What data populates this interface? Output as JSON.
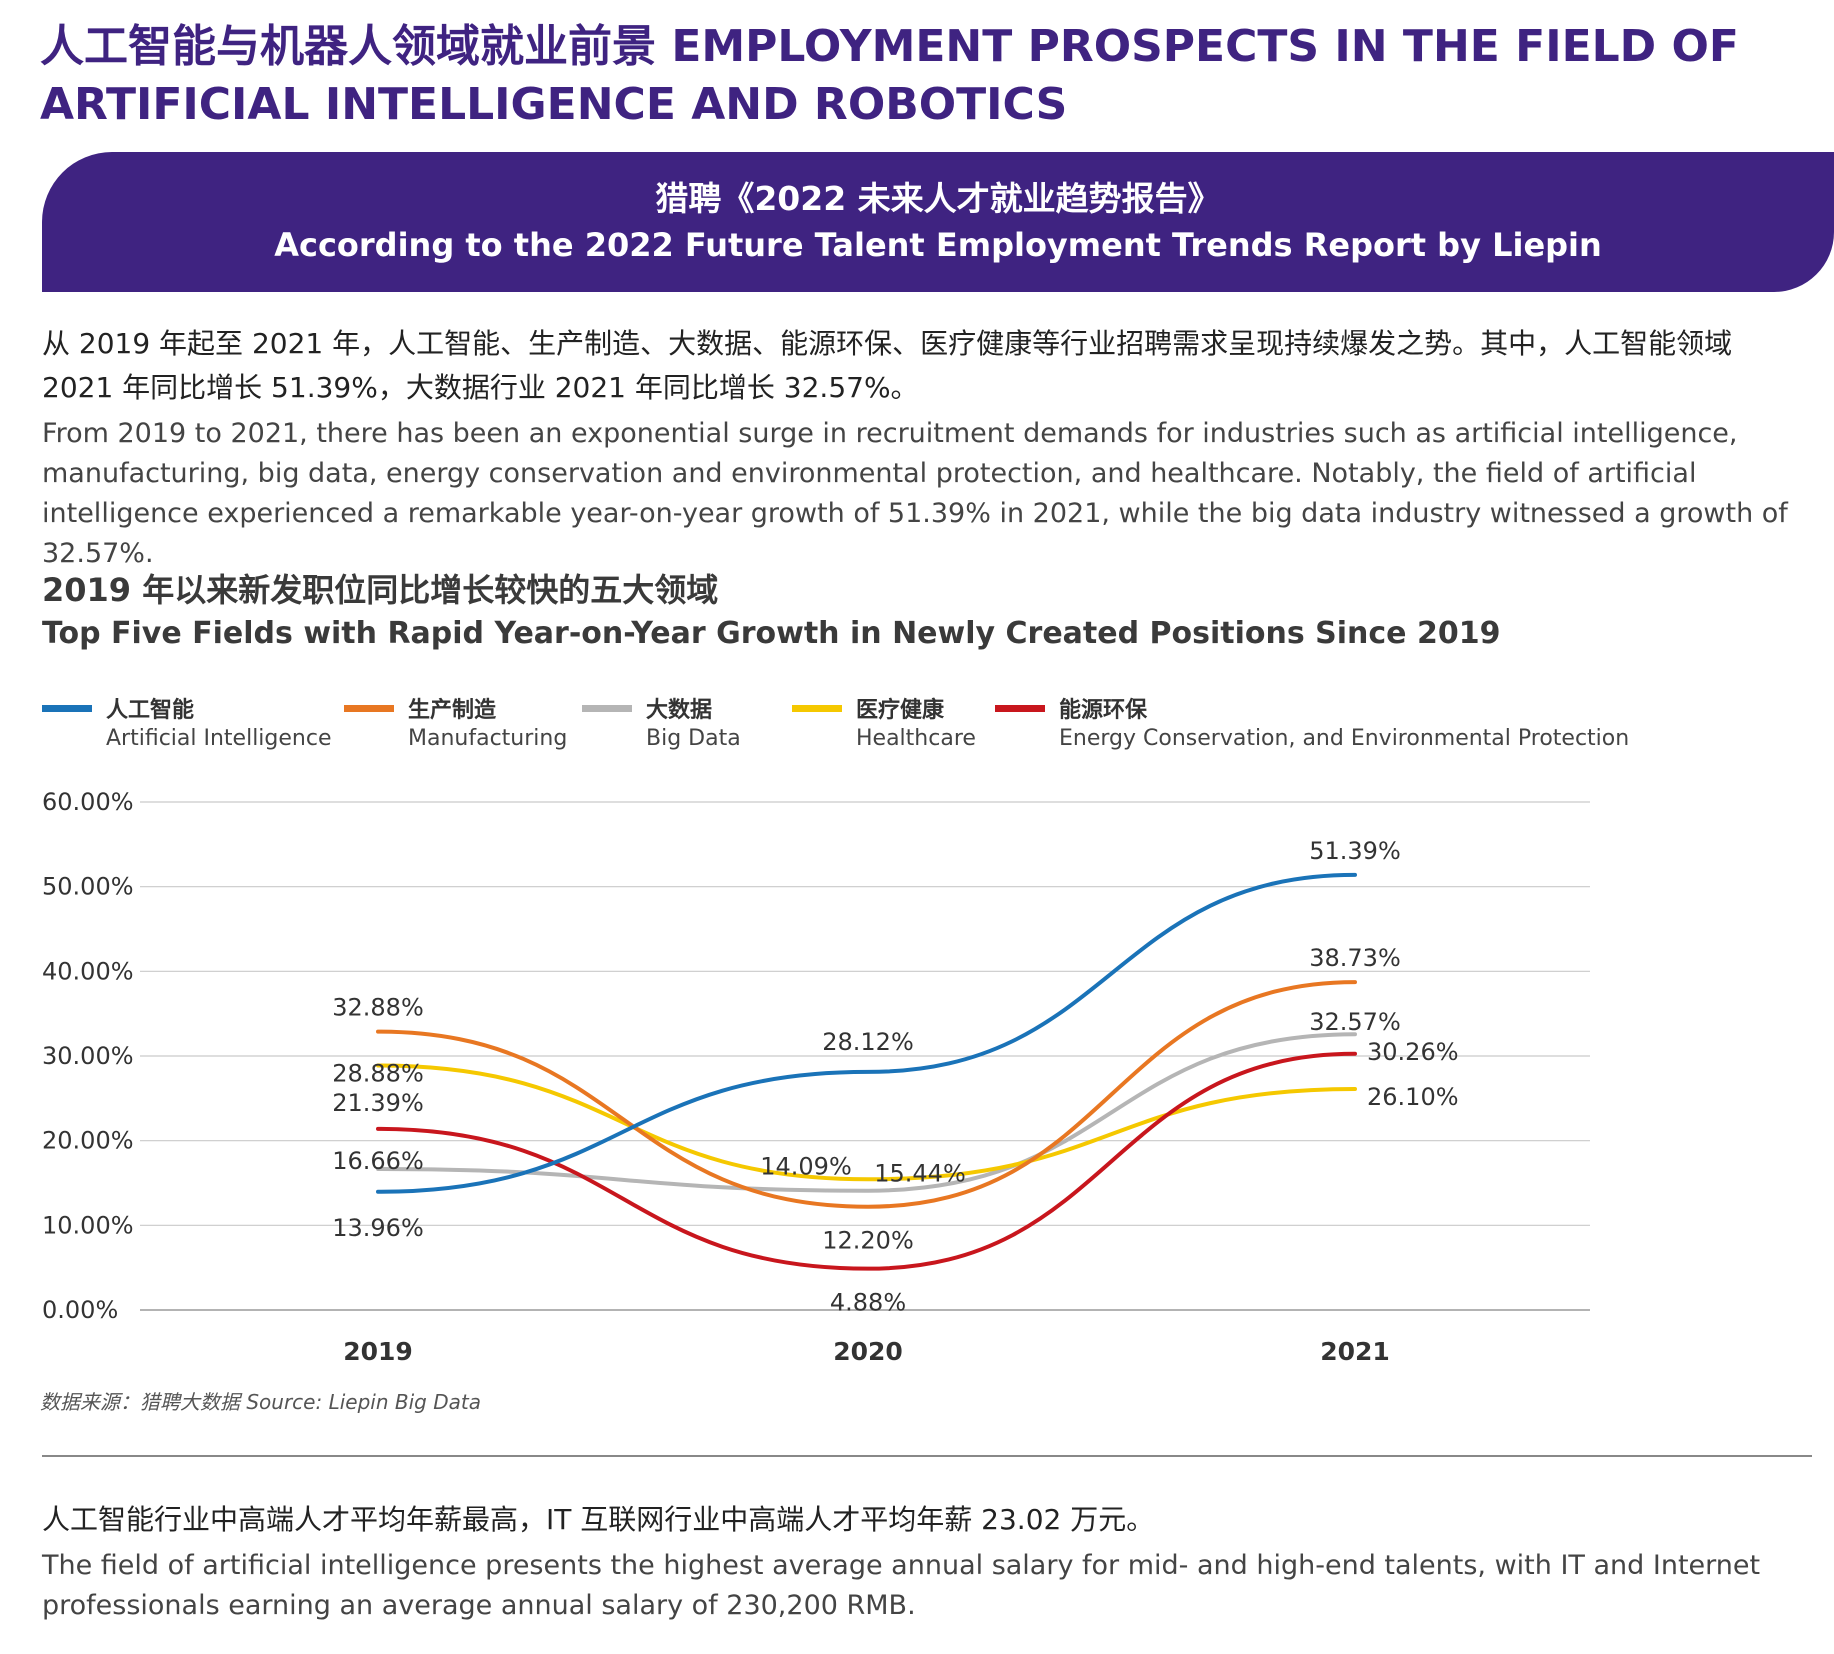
{
  "heading": "人工智能与机器人领域就业前景 EMPLOYMENT PROSPECTS IN THE FIELD OF ARTIFICIAL INTELLIGENCE AND ROBOTICS",
  "banner": {
    "zh": "猎聘《2022 未来人才就业趋势报告》",
    "en": "According to the 2022 Future Talent Employment Trends Report by Liepin"
  },
  "intro": {
    "zh": "从 2019 年起至 2021 年，人工智能、生产制造、大数据、能源环保、医疗健康等行业招聘需求呈现持续爆发之势。其中，人工智能领域 2021 年同比增长 51.39%，大数据行业 2021 年同比增长 32.57%。",
    "en": "From 2019 to 2021, there has been an exponential surge in recruitment demands for industries such as artificial intelligence, manufacturing, big data, energy conservation and environmental protection, and healthcare. Notably, the field of artificial intelligence experienced a remarkable year-on-year growth of 51.39% in 2021, while the big data industry witnessed a growth of 32.57%."
  },
  "chart_title": {
    "zh": "2019 年以来新发职位同比增长较快的五大领域",
    "en": "Top Five Fields with Rapid Year-on-Year Growth in Newly Created Positions Since 2019"
  },
  "source": "数据来源：猎聘大数据  Source: Liepin Big Data",
  "closing": {
    "zh": "人工智能行业中高端人才平均年薪最高，IT 互联网行业中高端人才平均年薪 23.02 万元。",
    "en": "The field of artificial intelligence presents the highest average annual salary for mid- and high-end talents, with IT and Internet professionals earning an average annual salary of 230,200 RMB."
  },
  "chart_data": {
    "type": "line",
    "x": [
      "2019",
      "2020",
      "2021"
    ],
    "ylim": [
      0,
      60
    ],
    "yticks": [
      "0.00%",
      "10.00%",
      "20.00%",
      "30.00%",
      "40.00%",
      "50.00%",
      "60.00%"
    ],
    "grid": true,
    "legend_position": "top",
    "series": [
      {
        "name_zh": "人工智能",
        "name_en": "Artificial Intelligence",
        "color": "#1a73b8",
        "values": [
          13.96,
          28.12,
          51.39
        ],
        "labels": [
          "13.96%",
          "28.12%",
          "51.39%"
        ]
      },
      {
        "name_zh": "生产制造",
        "name_en": "Manufacturing",
        "color": "#e87722",
        "values": [
          32.88,
          12.2,
          38.73
        ],
        "labels": [
          "32.88%",
          "12.20%",
          "38.73%"
        ]
      },
      {
        "name_zh": "大数据",
        "name_en": "Big Data",
        "color": "#b5b5b5",
        "values": [
          16.66,
          14.09,
          32.57
        ],
        "labels": [
          "16.66%",
          "14.09%",
          "32.57%"
        ]
      },
      {
        "name_zh": "医疗健康",
        "name_en": "Healthcare",
        "color": "#f5c800",
        "values": [
          28.88,
          15.44,
          26.1
        ],
        "labels": [
          "28.88%",
          "15.44%",
          "26.10%"
        ]
      },
      {
        "name_zh": "能源环保",
        "name_en": "Energy Conservation, and Environmental Protection",
        "color": "#c8161d",
        "values": [
          21.39,
          4.88,
          30.26
        ],
        "labels": [
          "21.39%",
          "4.88%",
          "30.26%"
        ]
      }
    ]
  }
}
